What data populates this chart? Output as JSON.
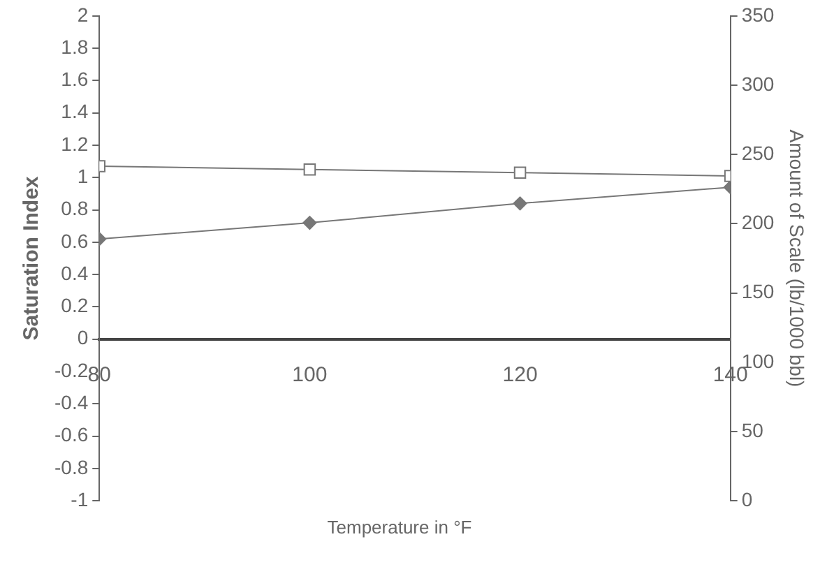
{
  "chart_data": {
    "type": "line",
    "xlabel": "Temperature in °F",
    "ylabel": "Saturation Index",
    "y2label": "Amount of Scale (lb/1000 bbl)",
    "x": [
      80,
      100,
      120,
      140
    ],
    "series": [
      {
        "color": "#777777",
        "values": [
          1.07,
          1.05,
          1.03,
          1.01
        ],
        "marker": "square"
      },
      {
        "color": "#777777",
        "values": [
          0.62,
          0.72,
          0.84,
          0.94
        ],
        "marker": "diamond"
      }
    ],
    "xlim": [
      80,
      140
    ],
    "xticks": [
      80,
      100,
      120,
      140
    ],
    "ylim": [
      -1,
      2
    ],
    "yticks": [
      -1,
      -0.8,
      -0.6,
      -0.4,
      -0.2,
      0,
      0.2,
      0.4,
      0.6,
      0.8,
      1,
      1.2,
      1.4,
      1.6,
      1.8,
      2
    ],
    "y2lim": [
      0,
      350
    ],
    "y2ticks": [
      0,
      50,
      100,
      150,
      200,
      250,
      300,
      350
    ],
    "grid": false,
    "legend": false
  }
}
